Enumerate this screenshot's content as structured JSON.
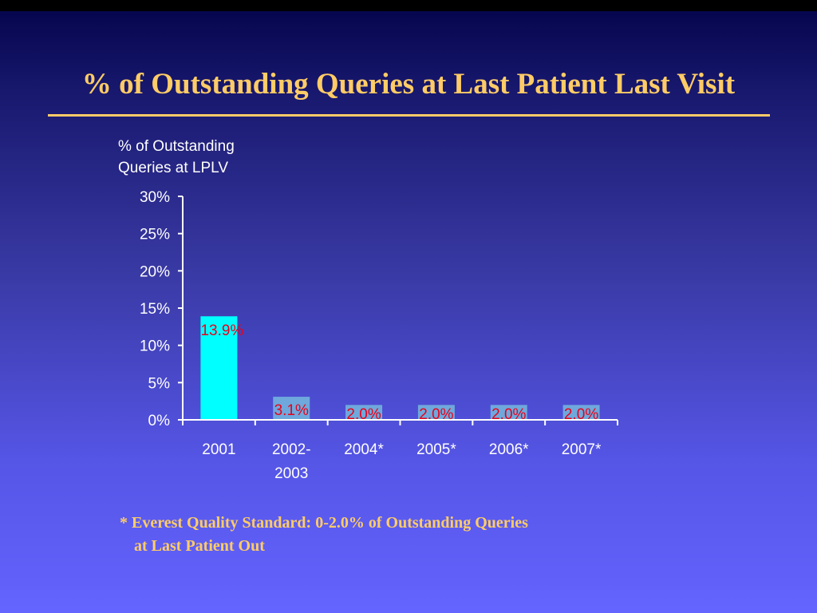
{
  "slide": {
    "title": "% of Outstanding Queries at Last Patient Last Visit",
    "footnote": {
      "line1": "* Everest Quality Standard: 0-2.0% of Outstanding Queries",
      "line2": "at Last Patient Out"
    }
  },
  "chart_data": {
    "type": "bar",
    "ylabel": [
      "% of Outstanding",
      "Queries at LPLV"
    ],
    "xlabel": "",
    "categories": [
      [
        "2001"
      ],
      [
        "2002-",
        "2003"
      ],
      [
        "2004*"
      ],
      [
        "2005*"
      ],
      [
        "2006*"
      ],
      [
        "2007*"
      ]
    ],
    "values": [
      13.9,
      3.1,
      2.0,
      2.0,
      2.0,
      2.0
    ],
    "data_labels": [
      "13.9%",
      "3.1%",
      "2.0%",
      "2.0%",
      "2.0%",
      "2.0%"
    ],
    "ylim": [
      0,
      30
    ],
    "yticks": [
      0,
      5,
      10,
      15,
      20,
      25,
      30
    ],
    "ytick_labels": [
      "0%",
      "5%",
      "10%",
      "15%",
      "20%",
      "25%",
      "30%"
    ],
    "bar_colors": [
      "#00ffff",
      "#6fa8dc",
      "#6fa8dc",
      "#6fa8dc",
      "#6fa8dc",
      "#6fa8dc"
    ],
    "label_color": "#e8001a",
    "grid": false,
    "legend": "none"
  }
}
